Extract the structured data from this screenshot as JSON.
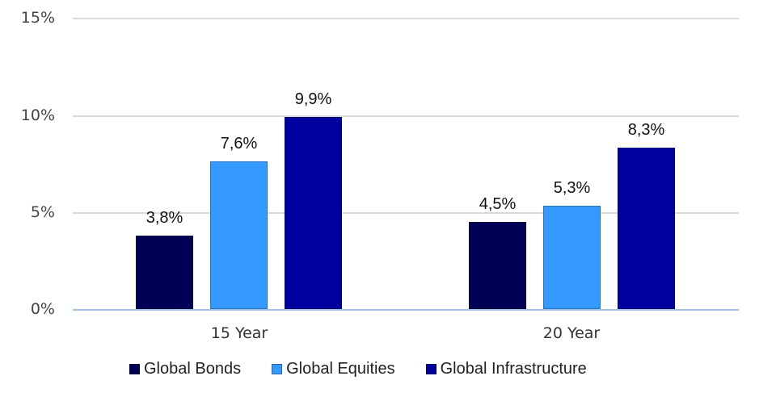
{
  "chart_data": {
    "type": "bar",
    "title": "",
    "xlabel": "",
    "ylabel": "",
    "ylim": [
      0,
      15
    ],
    "yticks": [
      "0%",
      "5%",
      "10%",
      "15%"
    ],
    "grid": true,
    "legend_position": "bottom",
    "categories": [
      "15 Year",
      "20 Year"
    ],
    "series": [
      {
        "name": "Global Bonds",
        "color": "#000054",
        "values": [
          3.8,
          4.5
        ],
        "labels": [
          "3,8%",
          "4,5%"
        ]
      },
      {
        "name": "Global Equities",
        "color": "#3399ff",
        "values": [
          7.6,
          5.3
        ],
        "labels": [
          "7,6%",
          "5,3%"
        ]
      },
      {
        "name": "Global Infrastructure",
        "color": "#00009e",
        "values": [
          9.9,
          8.3
        ],
        "labels": [
          "9,9%",
          "8,3%"
        ]
      }
    ]
  }
}
